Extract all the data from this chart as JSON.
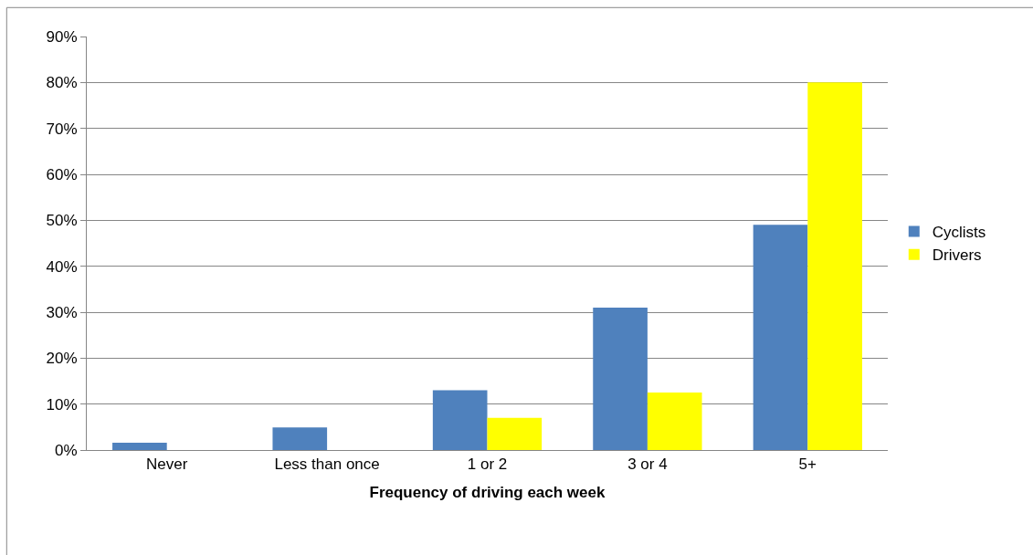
{
  "chart_data": {
    "type": "bar",
    "xlabel": "Frequency of driving each week",
    "categories": [
      "Never",
      "Less than once",
      "1 or 2",
      "3 or 4",
      "5+"
    ],
    "series": [
      {
        "name": "Cyclists",
        "color": "#4f81bd",
        "values": [
          1.6,
          4.9,
          13,
          31,
          49
        ]
      },
      {
        "name": "Drivers",
        "color": "#ffff00",
        "values": [
          0,
          0,
          7,
          12.5,
          80
        ]
      }
    ],
    "ylim": [
      0,
      90
    ],
    "yticks": [
      {
        "value": 0,
        "label": "0%"
      },
      {
        "value": 10,
        "label": "10%"
      },
      {
        "value": 20,
        "label": "20%"
      },
      {
        "value": 30,
        "label": "30%"
      },
      {
        "value": 40,
        "label": "40%"
      },
      {
        "value": 50,
        "label": "50%"
      },
      {
        "value": 60,
        "label": "60%"
      },
      {
        "value": 70,
        "label": "70%"
      },
      {
        "value": 80,
        "label": "80%"
      },
      {
        "value": 90,
        "label": "90%"
      }
    ],
    "grid": "y",
    "legend": "right"
  }
}
